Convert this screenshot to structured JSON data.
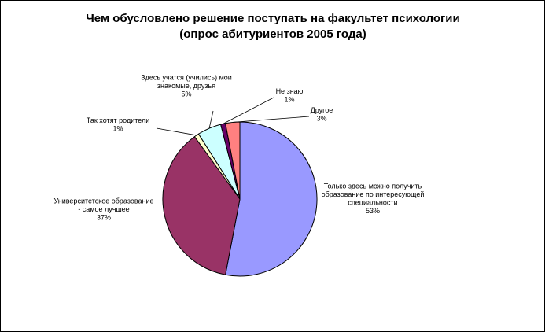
{
  "chart_data": {
    "type": "pie",
    "title_lines": [
      "Чем обусловлено решение поступать  на факультет психологии",
      "(опрос абитуриентов 2005 года)"
    ],
    "slices": [
      {
        "label_lines": [
          "Только здесь можно получить",
          "образование  по интересующей",
          "специальности"
        ],
        "value": 53,
        "value_label": "53%",
        "color": "#9999ff"
      },
      {
        "label_lines": [
          "Университетское образование",
          "- самое лучшее"
        ],
        "value": 37,
        "value_label": "37%",
        "color": "#993366"
      },
      {
        "label_lines": [
          "Так хотят родители"
        ],
        "value": 1,
        "value_label": "1%",
        "color": "#ffffcc"
      },
      {
        "label_lines": [
          "Здесь  учатся (учились) мои",
          "знакомые, друзья"
        ],
        "value": 5,
        "value_label": "5%",
        "color": "#ccffff"
      },
      {
        "label_lines": [
          "Не знаю"
        ],
        "value": 1,
        "value_label": "1%",
        "color": "#660066"
      },
      {
        "label_lines": [
          "Другое"
        ],
        "value": 3,
        "value_label": "3%",
        "color": "#ff8080"
      }
    ]
  }
}
